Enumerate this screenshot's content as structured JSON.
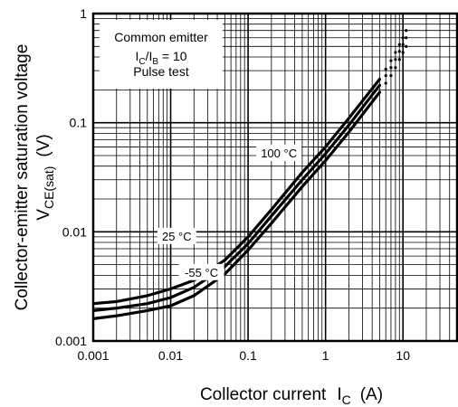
{
  "chart_data": {
    "type": "line",
    "title": "",
    "xlabel": "Collector current",
    "xlabel_symbol": "I",
    "xlabel_subscript": "C",
    "xlabel_unit": "(A)",
    "ylabel_line1": "Collector-emitter saturation voltage",
    "ylabel_symbol": "V",
    "ylabel_subscript": "CE(sat)",
    "ylabel_unit": "(V)",
    "x_scale": "log",
    "y_scale": "log",
    "xlim": [
      0.001,
      50
    ],
    "ylim": [
      0.001,
      1
    ],
    "x_ticks": [
      0.001,
      0.01,
      0.1,
      1,
      10
    ],
    "x_tick_labels": [
      "0.001",
      "0.01",
      "0.1",
      "1",
      "10"
    ],
    "y_ticks": [
      0.001,
      0.01,
      0.1,
      1
    ],
    "y_tick_labels": [
      "0.001",
      "0.01",
      "0.1",
      "1"
    ],
    "grid": true,
    "conditions": {
      "line1": "Common emitter",
      "line2_sym1": "I",
      "line2_sub1": "C",
      "line2_slash": "/I",
      "line2_sub2": "B",
      "line2_rest": " = 10",
      "line3": "Pulse test"
    },
    "series": [
      {
        "name": "100 °C",
        "x": [
          0.001,
          0.002,
          0.005,
          0.01,
          0.02,
          0.05,
          0.1,
          0.2,
          0.5,
          1,
          2,
          5
        ],
        "y": [
          0.0022,
          0.0023,
          0.0026,
          0.003,
          0.0036,
          0.0055,
          0.009,
          0.016,
          0.035,
          0.06,
          0.11,
          0.25
        ],
        "dotted_x": [
          5,
          6,
          7,
          8,
          9,
          10,
          11
        ],
        "dotted_y": [
          0.25,
          0.31,
          0.37,
          0.44,
          0.52,
          0.6,
          0.7
        ]
      },
      {
        "name": "25 °C",
        "x": [
          0.001,
          0.002,
          0.005,
          0.01,
          0.02,
          0.05,
          0.1,
          0.2,
          0.5,
          1,
          2,
          5
        ],
        "y": [
          0.0019,
          0.002,
          0.0022,
          0.0025,
          0.0031,
          0.0048,
          0.0078,
          0.014,
          0.03,
          0.052,
          0.095,
          0.22
        ],
        "dotted_x": [
          5,
          6,
          7,
          8,
          9,
          10,
          11
        ],
        "dotted_y": [
          0.22,
          0.27,
          0.32,
          0.38,
          0.45,
          0.52,
          0.6
        ]
      },
      {
        "name": "-55 °C",
        "x": [
          0.001,
          0.002,
          0.005,
          0.01,
          0.02,
          0.05,
          0.1,
          0.2,
          0.5,
          1,
          2,
          5
        ],
        "y": [
          0.0016,
          0.0017,
          0.0019,
          0.0021,
          0.0026,
          0.0041,
          0.0068,
          0.012,
          0.026,
          0.045,
          0.082,
          0.19
        ],
        "dotted_x": [
          5,
          6,
          7,
          8,
          9,
          10,
          11
        ],
        "dotted_y": [
          0.19,
          0.23,
          0.27,
          0.32,
          0.38,
          0.44,
          0.5
        ]
      }
    ],
    "curve_labels": [
      {
        "text": "100 °C",
        "x": 0.25,
        "y": 0.052
      },
      {
        "text": "25 °C",
        "x": 0.012,
        "y": 0.009
      },
      {
        "text": "-55 °C",
        "x": 0.025,
        "y": 0.0042
      }
    ],
    "colors": {
      "curve": "#000000",
      "grid": "#000000",
      "background": "#ffffff"
    }
  }
}
